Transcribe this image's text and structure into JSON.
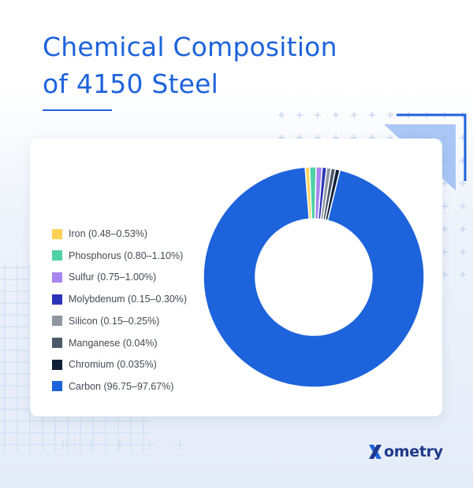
{
  "header": {
    "title_line1": "Chemical Composition",
    "title_line2": "of 4150 Steel"
  },
  "brand": {
    "logo_text": "ometry",
    "logo_alt": "Xometry"
  },
  "colors": {
    "accent": "#1d63dc",
    "logo": "#1f3a8a"
  },
  "chart_data": {
    "type": "pie",
    "variant": "donut",
    "legend_position": "left",
    "categories": [
      "Iron (0.48–0.53%)",
      "Phosphorus (0.80–1.10%)",
      "Sulfur (0.75–1.00%)",
      "Molybdenum (0.15–0.30%)",
      "Silicon (0.15–0.25%)",
      "Manganese (0.04%)",
      "Chromium (0.035%)",
      "Carbon (96.75–97.67%)"
    ],
    "values": [
      0.505,
      0.95,
      0.875,
      0.225,
      0.2,
      0.04,
      0.035,
      97.21
    ],
    "colors": [
      "#ffd257",
      "#4fd1a5",
      "#a885f0",
      "#2b34b8",
      "#8e979f",
      "#4b5a6a",
      "#0f1f38",
      "#1d63dc"
    ]
  }
}
